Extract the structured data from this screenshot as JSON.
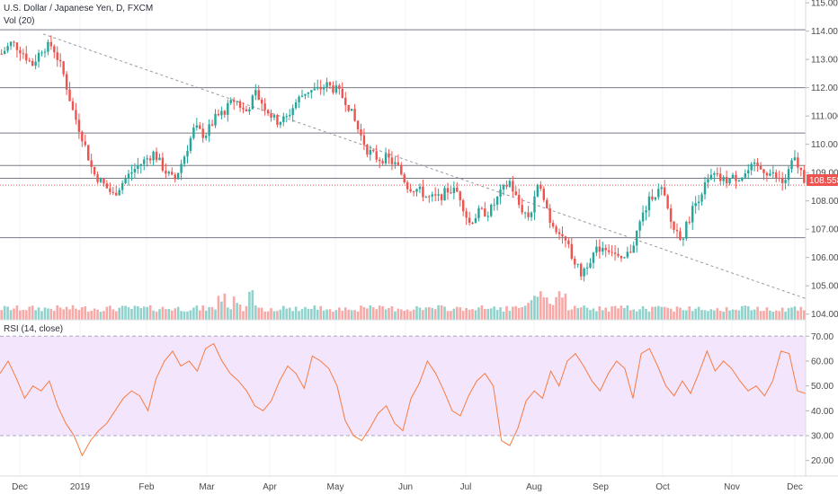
{
  "header": {
    "symbol": "U.S. Dollar / Japanese Yen, D, FXCM",
    "volume_label": "Vol (20)",
    "rsi_label": "RSI (14, close)"
  },
  "last_price": {
    "label": "108.558",
    "value": 108.558,
    "color": "#ef5350"
  },
  "colors": {
    "up": "#26a69a",
    "down": "#ef5350",
    "rsi": "#f57c42",
    "rsi_band": "#f3e5fc"
  },
  "price_axis": {
    "ticks": [
      "115.000",
      "114.000",
      "113.000",
      "112.000",
      "111.000",
      "110.000",
      "109.000",
      "108.000",
      "107.000",
      "106.000",
      "105.000",
      "104.000"
    ]
  },
  "rsi_axis": {
    "ticks": [
      "70.00",
      "60.00",
      "50.00",
      "40.00",
      "30.00",
      "20.00"
    ]
  },
  "time_axis": {
    "labels": [
      "Dec",
      "2019",
      "Feb",
      "Mar",
      "Apr",
      "May",
      "Jun",
      "Jul",
      "Aug",
      "Sep",
      "Oct",
      "Nov",
      "Dec"
    ]
  },
  "chart_data": [
    {
      "type": "candlestick",
      "title": "U.S. Dollar / Japanese Yen, D, FXCM",
      "ylim": [
        103.8,
        115.1
      ],
      "x_months": [
        "Dec",
        "2019",
        "Feb",
        "Mar",
        "Apr",
        "May",
        "Jun",
        "Jul",
        "Aug",
        "Sep",
        "Oct",
        "Nov",
        "Dec"
      ],
      "close_path": [
        113.2,
        113.6,
        113.3,
        112.8,
        113.4,
        113.5,
        112.6,
        111.2,
        110.2,
        109.0,
        108.6,
        108.2,
        108.7,
        109.1,
        109.4,
        109.7,
        109.1,
        108.7,
        109.6,
        110.6,
        110.3,
        110.9,
        111.2,
        111.6,
        111.1,
        111.8,
        111.3,
        110.8,
        110.9,
        111.5,
        111.9,
        111.9,
        112.1,
        111.9,
        111.5,
        110.6,
        109.8,
        109.5,
        109.5,
        109.2,
        108.5,
        108.4,
        108.1,
        108.1,
        108.4,
        108.3,
        107.2,
        107.6,
        107.6,
        108.2,
        108.7,
        107.8,
        107.4,
        108.7,
        107.3,
        106.9,
        106.2,
        105.4,
        106.0,
        106.4,
        106.3,
        105.8,
        106.3,
        107.4,
        108.2,
        108.4,
        107.1,
        106.7,
        107.7,
        108.4,
        108.9,
        108.7,
        108.8,
        108.9,
        109.2,
        109.1,
        108.9,
        108.6,
        109.5,
        108.8
      ],
      "horizontal_levels": [
        114.05,
        112.0,
        110.4,
        109.25,
        108.8,
        106.7
      ],
      "trendline": {
        "from": 113.9,
        "to": 104.55
      },
      "last_value": 108.558
    },
    {
      "type": "bar",
      "title": "Vol (20)",
      "description_values": "daily volume bars, baseline around 20 with spikes near early January and early August",
      "baseline": 20,
      "peaks": [
        {
          "near": "2019 (early Jan)",
          "value": 55
        },
        {
          "near": "Aug (early)",
          "value": 52
        }
      ]
    },
    {
      "type": "line",
      "title": "RSI (14, close)",
      "ylim": [
        17,
        73
      ],
      "bands": [
        30,
        70
      ],
      "values": [
        55,
        60,
        53,
        45,
        50,
        48,
        52,
        42,
        35,
        30,
        22,
        28,
        32,
        35,
        40,
        45,
        48,
        46,
        40,
        53,
        60,
        64,
        58,
        60,
        56,
        65,
        67,
        60,
        55,
        52,
        48,
        42,
        40,
        44,
        52,
        58,
        55,
        49,
        62,
        60,
        57,
        50,
        36,
        30,
        28,
        33,
        39,
        42,
        35,
        32,
        45,
        51,
        60,
        55,
        48,
        40,
        38,
        46,
        52,
        55,
        50,
        28,
        26,
        33,
        44,
        48,
        45,
        56,
        50,
        60,
        63,
        58,
        52,
        48,
        55,
        60,
        57,
        45,
        63,
        65,
        58,
        50,
        46,
        52,
        47,
        55,
        64,
        56,
        60,
        57,
        52,
        48,
        50,
        46,
        52,
        64,
        63,
        48,
        47
      ]
    }
  ]
}
